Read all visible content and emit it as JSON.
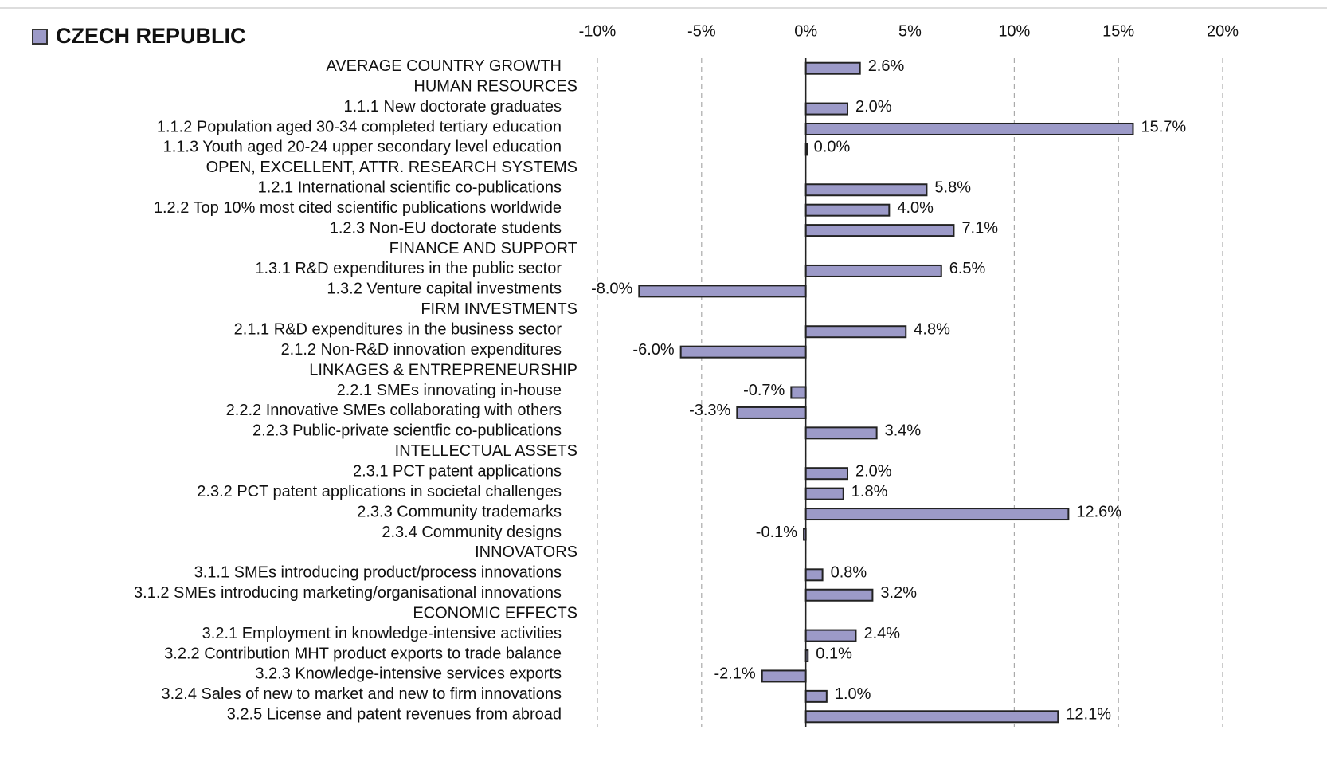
{
  "chart_data": {
    "type": "bar",
    "orientation": "horizontal",
    "categories": [
      "AVERAGE COUNTRY GROWTH",
      "HUMAN RESOURCES",
      "1.1.1 New doctorate graduates",
      "1.1.2 Population aged 30-34 completed tertiary education",
      "1.1.3 Youth aged 20-24 upper secondary level education",
      "OPEN, EXCELLENT, ATTR. RESEARCH SYSTEMS",
      "1.2.1 International scientific co-publications",
      "1.2.2 Top 10% most cited scientific publications worldwide",
      "1.2.3 Non-EU doctorate students",
      "FINANCE AND SUPPORT",
      "1.3.1 R&D expenditures in the public sector",
      "1.3.2 Venture capital investments",
      "FIRM INVESTMENTS",
      "2.1.1 R&D expenditures in the business sector",
      "2.1.2 Non-R&D innovation expenditures",
      "LINKAGES & ENTREPRENEURSHIP",
      "2.2.1 SMEs innovating in-house",
      "2.2.2 Innovative SMEs collaborating with others",
      "2.2.3 Public-private scientfic co-publications",
      "INTELLECTUAL ASSETS",
      "2.3.1 PCT patent applications",
      "2.3.2 PCT patent applications in societal challenges",
      "2.3.3 Community trademarks",
      "2.3.4 Community designs",
      "INNOVATORS",
      "3.1.1 SMEs introducing product/process innovations",
      "3.1.2 SMEs introducing marketing/organisational innovations",
      "ECONOMIC EFFECTS",
      "3.2.1 Employment in knowledge-intensive activities",
      "3.2.2 Contribution MHT product exports to trade balance",
      "3.2.3 Knowledge-intensive services exports",
      "3.2.4 Sales of new to market and new to firm innovations",
      "3.2.5 License and patent revenues from abroad"
    ],
    "series": [
      {
        "name": "CZECH REPUBLIC",
        "color": "#9c9ac8",
        "values": [
          2.6,
          null,
          2.0,
          15.7,
          0.0,
          null,
          5.8,
          4.0,
          7.1,
          null,
          6.5,
          -8.0,
          null,
          4.8,
          -6.0,
          null,
          -0.7,
          -3.3,
          3.4,
          null,
          2.0,
          1.8,
          12.6,
          -0.1,
          null,
          0.8,
          3.2,
          null,
          2.4,
          0.1,
          -2.1,
          1.0,
          12.1
        ],
        "value_labels": [
          "2.6%",
          null,
          "2.0%",
          "15.7%",
          "0.0%",
          null,
          "5.8%",
          "4.0%",
          "7.1%",
          null,
          "6.5%",
          "-8.0%",
          null,
          "4.8%",
          "-6.0%",
          null,
          "-0.7%",
          "-3.3%",
          "3.4%",
          null,
          "2.0%",
          "1.8%",
          "12.6%",
          "-0.1%",
          null,
          "0.8%",
          "3.2%",
          null,
          "2.4%",
          "0.1%",
          "-2.1%",
          "1.0%",
          "12.1%"
        ]
      }
    ],
    "xlim": [
      -10,
      20
    ],
    "xticks": [
      {
        "value": -10,
        "label": "-10%"
      },
      {
        "value": -5,
        "label": "-5%"
      },
      {
        "value": 0,
        "label": "0%"
      },
      {
        "value": 5,
        "label": "5%"
      },
      {
        "value": 10,
        "label": "10%"
      },
      {
        "value": 15,
        "label": "15%"
      },
      {
        "value": 20,
        "label": "20%"
      }
    ],
    "grid": true
  }
}
